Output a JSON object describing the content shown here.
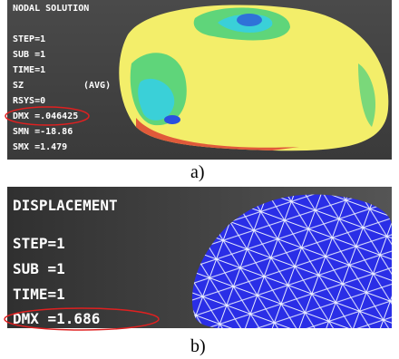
{
  "panel_a": {
    "title": "NODAL SOLUTION",
    "lines": [
      "STEP=1",
      "SUB =1",
      "TIME=1",
      "SZ",
      "RSYS=0",
      "DMX =.046425",
      "SMN =-18.86",
      "SMX =1.479"
    ],
    "avg": "(AVG)",
    "caption": "a)"
  },
  "panel_b": {
    "title": "DISPLACEMENT",
    "lines": [
      "STEP=1",
      "SUB =1",
      "TIME=1",
      "DMX =1.686"
    ],
    "caption": "b)"
  }
}
